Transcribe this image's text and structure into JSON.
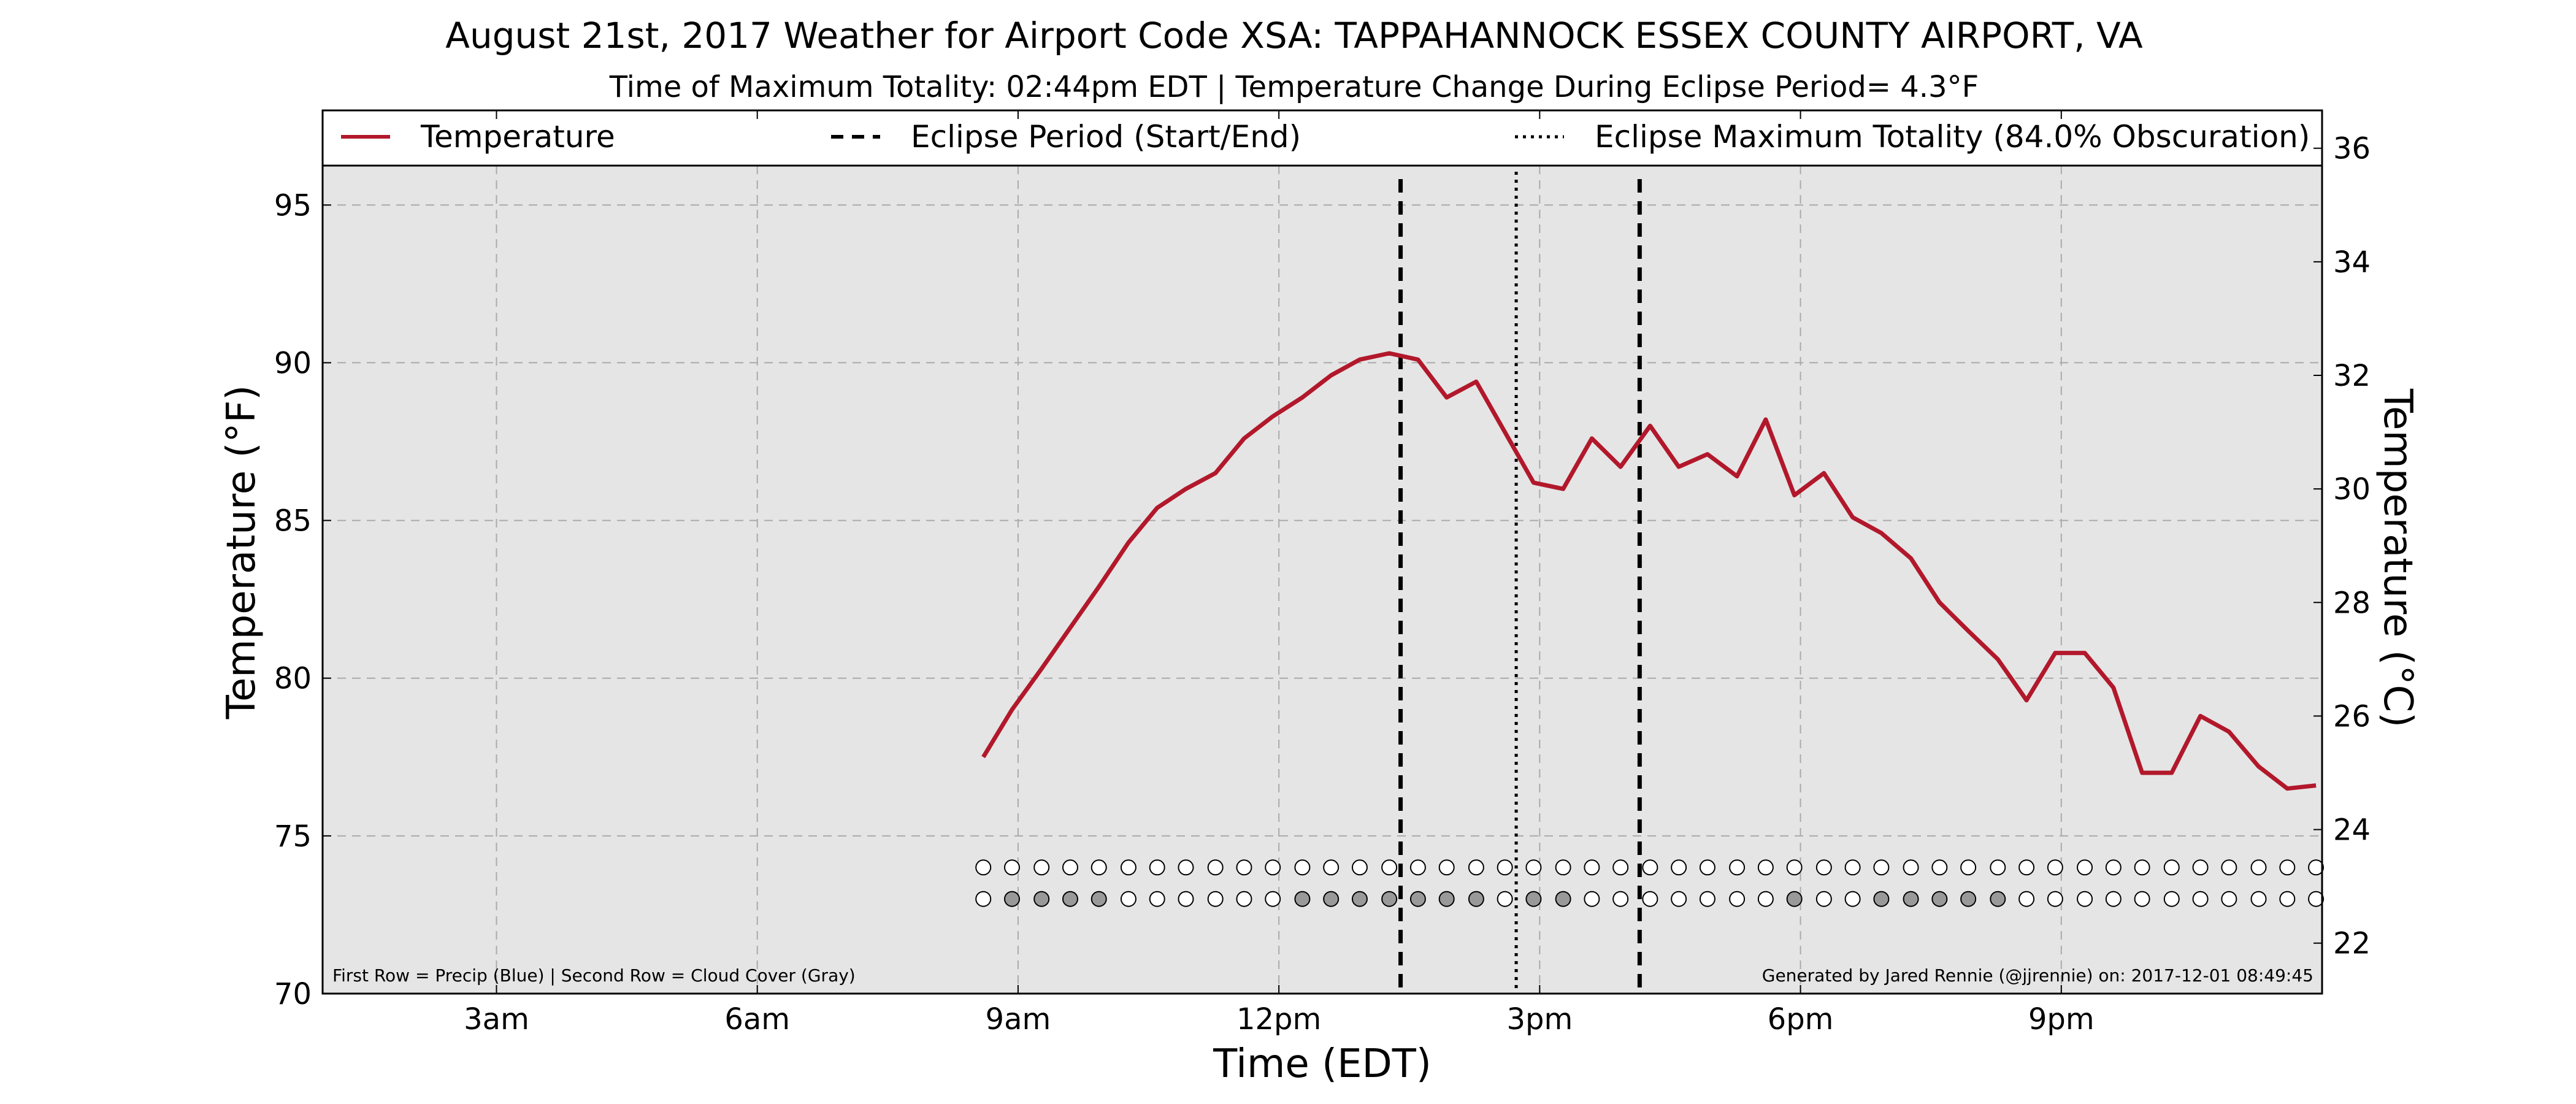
{
  "chart_data": {
    "type": "line",
    "title": "August 21st, 2017 Weather for Airport Code XSA: TAPPAHANNOCK ESSEX COUNTY AIRPORT, VA",
    "subtitle": "Time of Maximum Totality: 02:44pm EDT | Temperature Change During Eclipse Period= 4.3°F",
    "xlabel": "Time (EDT)",
    "ylabel": "Temperature (°F)",
    "ylabel_right": "Temperature (°C)",
    "x_unit": "hours (EDT)",
    "xlim": [
      1.0,
      24.0
    ],
    "ylim": [
      70,
      98
    ],
    "ylim_right_c": [
      21.11,
      36.67
    ],
    "xticks": [
      {
        "x": 3,
        "label": "3am"
      },
      {
        "x": 6,
        "label": "6am"
      },
      {
        "x": 9,
        "label": "9am"
      },
      {
        "x": 12,
        "label": "12pm"
      },
      {
        "x": 15,
        "label": "3pm"
      },
      {
        "x": 18,
        "label": "6pm"
      },
      {
        "x": 21,
        "label": "9pm"
      }
    ],
    "yticks_left": [
      70,
      75,
      80,
      85,
      90,
      95
    ],
    "yticks_right": [
      22,
      24,
      26,
      28,
      30,
      32,
      34,
      36
    ],
    "grid": true,
    "legend": {
      "placement": "top",
      "entries": [
        {
          "label": "Temperature",
          "style": "solid",
          "color": "#b2182b"
        },
        {
          "label": "Eclipse Period (Start/End)",
          "style": "dashed",
          "color": "#000000"
        },
        {
          "label": "Eclipse Maximum Totality (84.0% Obscuration)",
          "style": "dotted",
          "color": "#000000"
        }
      ]
    },
    "series": [
      {
        "name": "Temperature",
        "color": "#b2182b",
        "x": [
          8.6,
          8.93,
          9.27,
          9.6,
          9.93,
          10.27,
          10.6,
          10.93,
          11.27,
          11.6,
          11.93,
          12.27,
          12.6,
          12.93,
          13.27,
          13.6,
          13.93,
          14.27,
          14.6,
          14.93,
          15.27,
          15.6,
          15.93,
          16.27,
          16.6,
          16.93,
          17.27,
          17.6,
          17.93,
          18.27,
          18.6,
          18.93,
          19.27,
          19.6,
          19.93,
          20.27,
          20.6,
          20.93,
          21.27,
          21.6,
          21.93,
          22.27,
          22.6,
          22.93,
          23.27,
          23.6,
          23.93
        ],
        "y": [
          77.5,
          79.0,
          80.3,
          81.6,
          82.9,
          84.3,
          85.4,
          86.0,
          86.5,
          87.6,
          88.3,
          88.9,
          89.6,
          90.1,
          90.3,
          90.1,
          88.9,
          89.4,
          87.8,
          86.2,
          86.0,
          87.6,
          86.7,
          88.0,
          86.7,
          87.1,
          86.4,
          88.2,
          85.8,
          86.5,
          85.1,
          84.6,
          83.8,
          82.4,
          81.5,
          80.6,
          79.3,
          80.8,
          80.8,
          79.7,
          77.0,
          77.0,
          78.8,
          78.3,
          77.2,
          76.5,
          76.6
        ]
      }
    ],
    "eclipse_start": 13.4,
    "eclipse_end": 16.15,
    "eclipse_max": 14.73,
    "obs_rows": {
      "x": [
        8.6,
        8.93,
        9.27,
        9.6,
        9.93,
        10.27,
        10.6,
        10.93,
        11.27,
        11.6,
        11.93,
        12.27,
        12.6,
        12.93,
        13.27,
        13.6,
        13.93,
        14.27,
        14.6,
        14.93,
        15.27,
        15.6,
        15.93,
        16.27,
        16.6,
        16.93,
        17.27,
        17.6,
        17.93,
        18.27,
        18.6,
        18.93,
        19.27,
        19.6,
        19.93,
        20.27,
        20.6,
        20.93,
        21.27,
        21.6,
        21.93,
        22.27,
        22.6,
        22.93,
        23.27,
        23.6,
        23.93
      ],
      "precip_y": 74.0,
      "cloud_y": 73.0,
      "precip": [
        0,
        0,
        0,
        0,
        0,
        0,
        0,
        0,
        0,
        0,
        0,
        0,
        0,
        0,
        0,
        0,
        0,
        0,
        0,
        0,
        0,
        0,
        0,
        0,
        0,
        0,
        0,
        0,
        0,
        0,
        0,
        0,
        0,
        0,
        0,
        0,
        0,
        0,
        0,
        0,
        0,
        0,
        0,
        0,
        0,
        0,
        0
      ],
      "cloud": [
        0,
        1,
        1,
        1,
        1,
        0,
        0,
        0,
        0,
        0,
        0,
        1,
        1,
        1,
        1,
        1,
        1,
        1,
        0,
        1,
        1,
        0,
        0,
        0,
        0,
        0,
        0,
        0,
        1,
        0,
        0,
        1,
        1,
        1,
        1,
        1,
        0,
        0,
        0,
        0,
        0,
        0,
        0,
        0,
        0,
        0,
        0
      ],
      "colors": {
        "empty": "#ffffff",
        "precip": "#4a7bd0",
        "cloud": "#999999"
      }
    },
    "annotations": {
      "left": "First Row = Precip (Blue) | Second Row = Cloud Cover (Gray)",
      "right": "Generated by Jared Rennie (@jjrennie) on: 2017-12-01 08:49:45"
    },
    "colors": {
      "plot_bg": "#e5e5e5",
      "grid": "#aaaaaa",
      "line": "#b2182b"
    }
  }
}
